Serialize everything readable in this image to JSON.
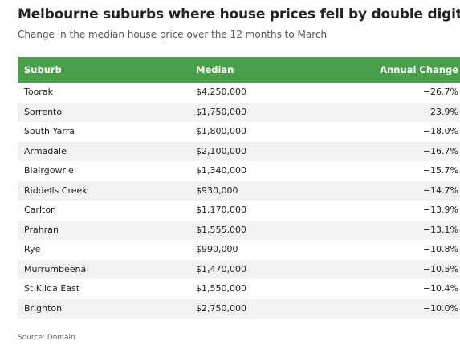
{
  "title": "Melbourne suburbs where house prices fell by double digits",
  "subtitle": "Change in the median house price over the 12 months to March",
  "source": "Source: Domain",
  "colors": {
    "header_bg": "#4aa04a",
    "row_alt_bg": "#f2f2f2"
  },
  "chart_data": {
    "type": "table",
    "columns": [
      "Suburb",
      "Median",
      "Annual Change"
    ],
    "rows": [
      [
        "Toorak",
        "$4,250,000",
        "−26.7%"
      ],
      [
        "Sorrento",
        "$1,750,000",
        "−23.9%"
      ],
      [
        "South Yarra",
        "$1,800,000",
        "−18.0%"
      ],
      [
        "Armadale",
        "$2,100,000",
        "−16.7%"
      ],
      [
        "Blairgowrie",
        "$1,340,000",
        "−15.7%"
      ],
      [
        "Riddells Creek",
        "$930,000",
        "−14.7%"
      ],
      [
        "Carlton",
        "$1,170,000",
        "−13.9%"
      ],
      [
        "Prahran",
        "$1,555,000",
        "−13.1%"
      ],
      [
        "Rye",
        "$990,000",
        "−10.8%"
      ],
      [
        "Murrumbeena",
        "$1,470,000",
        "−10.5%"
      ],
      [
        "St Kilda East",
        "$1,550,000",
        "−10.4%"
      ],
      [
        "Brighton",
        "$2,750,000",
        "−10.0%"
      ]
    ]
  }
}
